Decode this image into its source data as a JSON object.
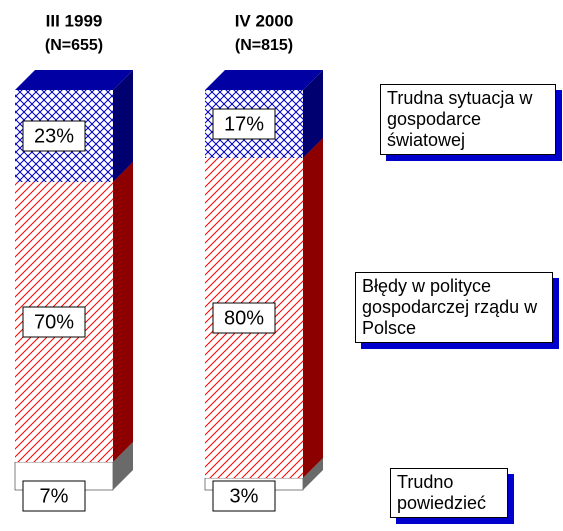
{
  "chart_data": {
    "type": "bar",
    "stacked": true,
    "categories": [
      "III 1999",
      "IV 2000"
    ],
    "category_notes": [
      "(N=655)",
      "(N=815)"
    ],
    "series": [
      {
        "name": "Trudno powiedzieć",
        "color": "#c0c0c0",
        "values": [
          7,
          3
        ],
        "value_labels": [
          "7%",
          "3%"
        ]
      },
      {
        "name": "Błędy w polityce gospodarczej rządu w Polsce",
        "color": "#ff0000",
        "values": [
          70,
          80
        ],
        "value_labels": [
          "70%",
          "80%"
        ]
      },
      {
        "name": "Trudna sytuacja w gospodarce światowej",
        "color": "#0000cc",
        "values": [
          23,
          17
        ],
        "value_labels": [
          "23%",
          "17%"
        ]
      }
    ]
  }
}
